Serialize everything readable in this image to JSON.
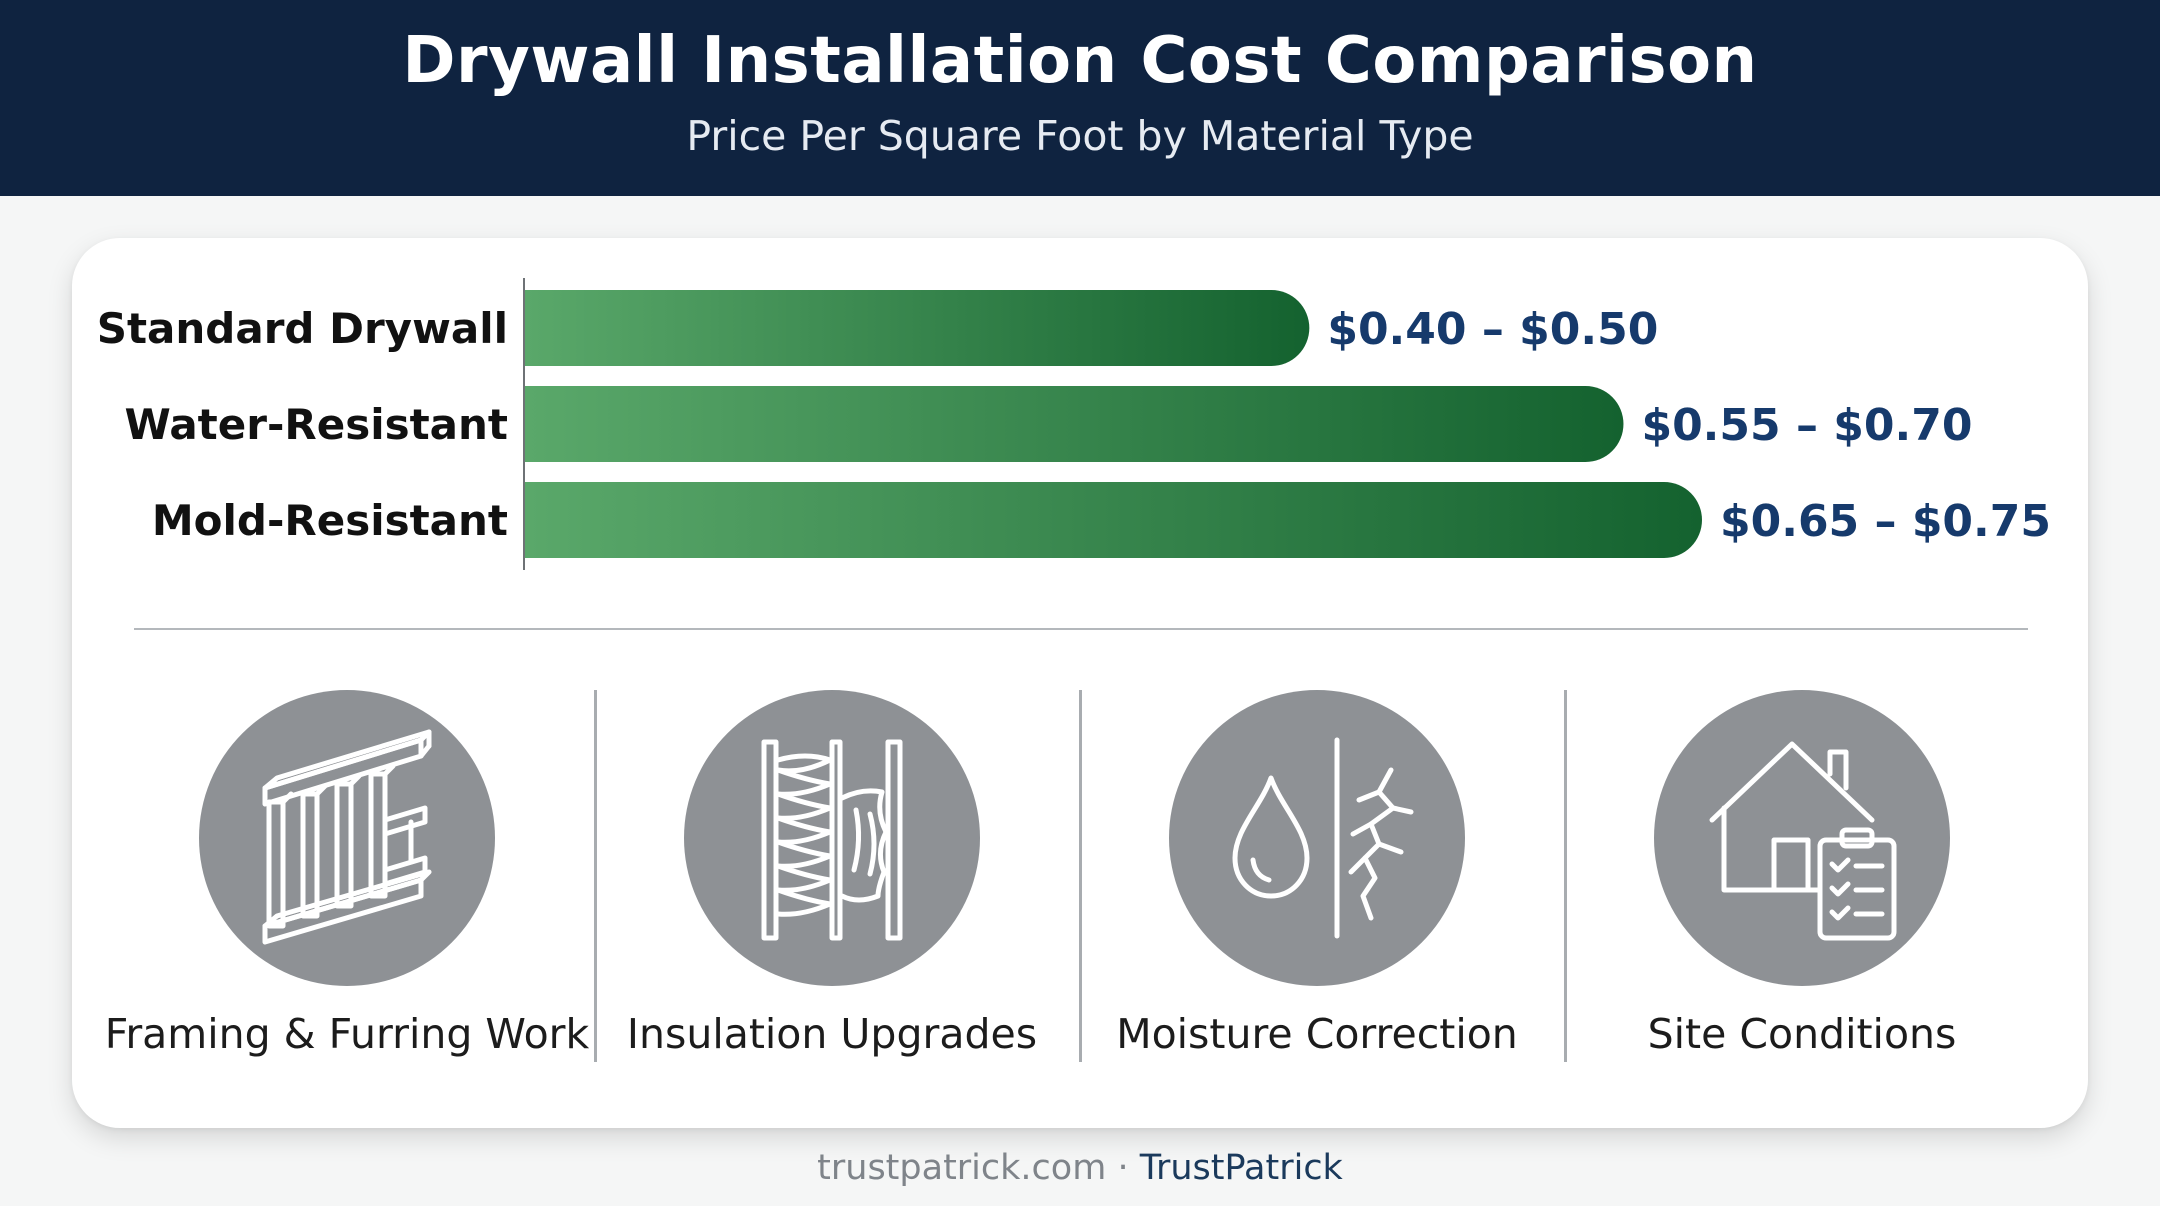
{
  "header": {
    "title": "Drywall Installation Cost Comparison",
    "subtitle": "Price Per Square Foot by Material Type"
  },
  "chart_data": {
    "type": "bar",
    "orientation": "horizontal",
    "title": "Drywall Installation Cost Comparison",
    "subtitle": "Price Per Square Foot by Material Type",
    "categories": [
      "Standard Drywall",
      "Water-Resistant",
      "Mold-Resistant"
    ],
    "ranges": [
      [
        0.4,
        0.5
      ],
      [
        0.55,
        0.7
      ],
      [
        0.65,
        0.75
      ]
    ],
    "labels": [
      "$0.40 – $0.50",
      "$0.55 – $0.70",
      "$0.65 – $0.75"
    ],
    "xlim": [
      0,
      0.75
    ],
    "grid": false,
    "bar_color_start": "#5aa86a",
    "bar_color_end": "#14622f",
    "label_color": "#163a6c"
  },
  "factors": [
    {
      "label": "Framing & Furring Work",
      "icon": "framing-icon"
    },
    {
      "label": "Insulation Upgrades",
      "icon": "insulation-icon"
    },
    {
      "label": "Moisture Correction",
      "icon": "water-drop-crack-icon"
    },
    {
      "label": "Site Conditions",
      "icon": "house-checklist-icon"
    }
  ],
  "footer": {
    "site": "trustpatrick.com",
    "separator": "·",
    "brand": "TrustPatrick"
  },
  "colors": {
    "header_bg": "#0f2340",
    "icon_circle": "#8e9195"
  }
}
